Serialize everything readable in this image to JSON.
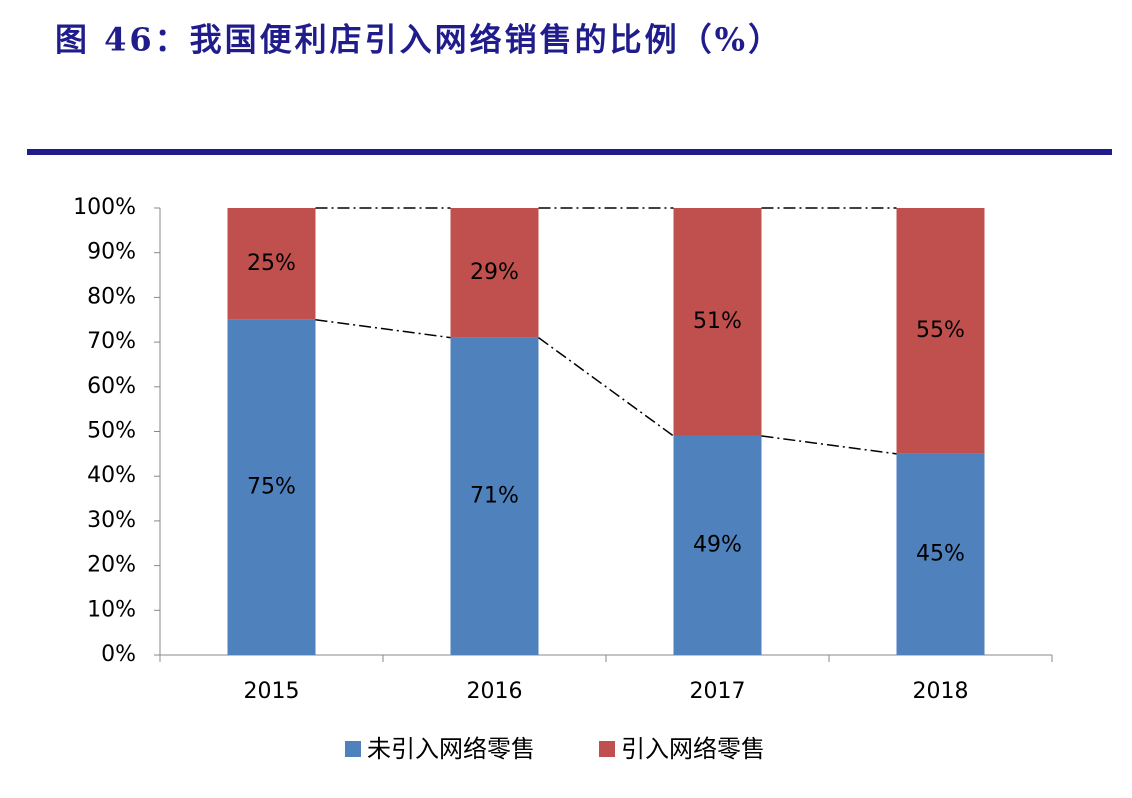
{
  "chart_data": {
    "type": "stacked_bar",
    "title": "图 46：我国便利店引入网络销售的比例（%）",
    "categories": [
      "2015",
      "2016",
      "2017",
      "2018"
    ],
    "series": [
      {
        "name": "未引入网络零售",
        "color": "#4f81bd",
        "values": [
          75,
          71,
          49,
          45
        ],
        "value_labels": [
          "75%",
          "71%",
          "49%",
          "45%"
        ]
      },
      {
        "name": "引入网络零售",
        "color": "#c0504d",
        "values": [
          25,
          29,
          51,
          55
        ],
        "value_labels": [
          "25%",
          "29%",
          "51%",
          "55%"
        ]
      }
    ],
    "ylim": [
      0,
      100
    ],
    "yticks": [
      {
        "value": 0,
        "label": "0%"
      },
      {
        "value": 10,
        "label": "10%"
      },
      {
        "value": 20,
        "label": "20%"
      },
      {
        "value": 30,
        "label": "30%"
      },
      {
        "value": 40,
        "label": "40%"
      },
      {
        "value": 50,
        "label": "50%"
      },
      {
        "value": 60,
        "label": "60%"
      },
      {
        "value": 70,
        "label": "70%"
      },
      {
        "value": 80,
        "label": "80%"
      },
      {
        "value": 90,
        "label": "90%"
      },
      {
        "value": 100,
        "label": "100%"
      }
    ],
    "grid": false,
    "legend": "bottom"
  }
}
